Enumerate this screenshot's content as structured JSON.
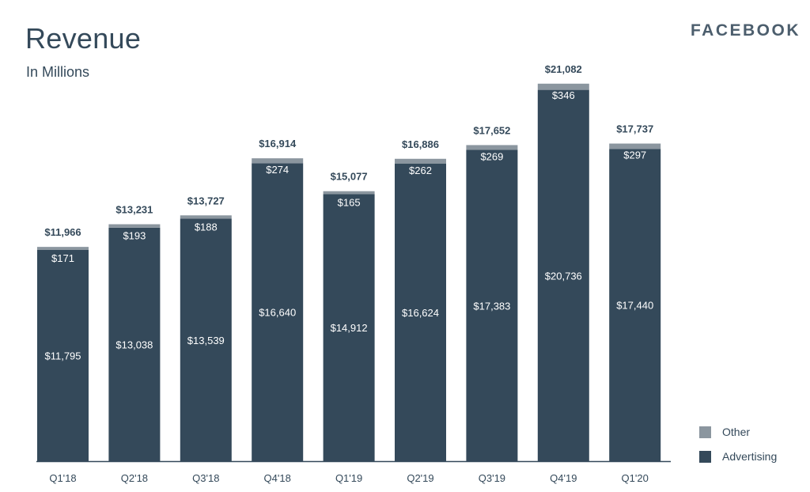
{
  "header": {
    "title": "Revenue",
    "subtitle": "In Millions",
    "brand": "FACEBOOK"
  },
  "colors": {
    "advertising": "#34495a",
    "other": "#8b969f",
    "axis": "#34495a",
    "text": "#34495a"
  },
  "legend": {
    "items": [
      {
        "label": "Other",
        "color": "#8b969f"
      },
      {
        "label": "Advertising",
        "color": "#34495a"
      }
    ]
  },
  "chart_data": {
    "type": "bar",
    "stacked": true,
    "categories": [
      "Q1'18",
      "Q2'18",
      "Q3'18",
      "Q4'18",
      "Q1'19",
      "Q2'19",
      "Q3'19",
      "Q4'19",
      "Q1'20"
    ],
    "series": [
      {
        "name": "Advertising",
        "values": [
          11795,
          13038,
          13539,
          16640,
          14912,
          16624,
          17383,
          20736,
          17440
        ],
        "labels": [
          "$11,795",
          "$13,038",
          "$13,539",
          "$16,640",
          "$14,912",
          "$16,624",
          "$17,383",
          "$20,736",
          "$17,440"
        ]
      },
      {
        "name": "Other",
        "values": [
          171,
          193,
          188,
          274,
          165,
          262,
          269,
          346,
          297
        ],
        "labels": [
          "$171",
          "$193",
          "$188",
          "$274",
          "$165",
          "$262",
          "$269",
          "$346",
          "$297"
        ]
      }
    ],
    "totals": [
      11966,
      13231,
      13727,
      16914,
      15077,
      16886,
      17652,
      21082,
      17737
    ],
    "total_labels": [
      "$11,966",
      "$13,231",
      "$13,727",
      "$16,914",
      "$15,077",
      "$16,886",
      "$17,652",
      "$21,082",
      "$17,737"
    ],
    "title": "Revenue",
    "subtitle": "In Millions",
    "xlabel": "",
    "ylabel": "",
    "ylim": [
      0,
      22000
    ],
    "grid": false,
    "legend_position": "bottom-right"
  }
}
